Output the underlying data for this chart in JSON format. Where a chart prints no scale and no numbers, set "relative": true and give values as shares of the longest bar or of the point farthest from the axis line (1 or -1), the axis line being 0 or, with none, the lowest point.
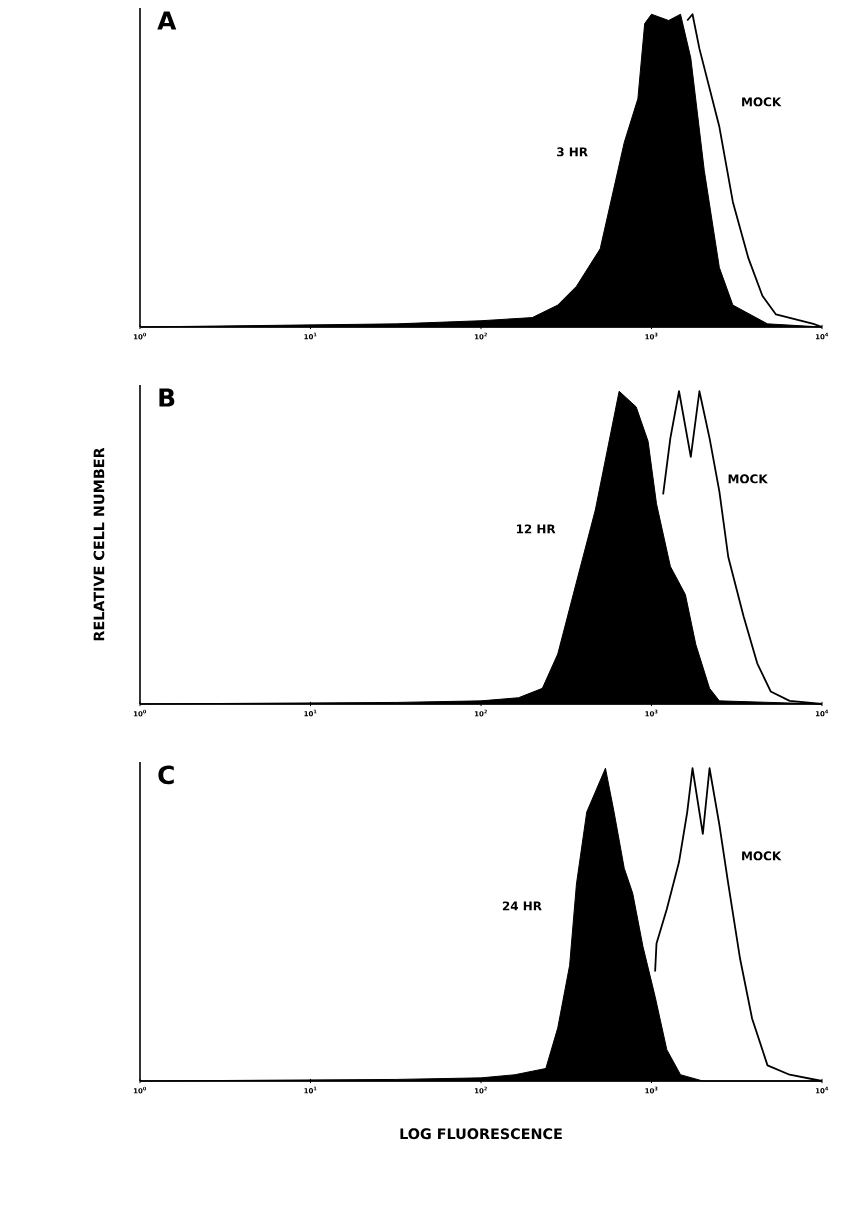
{
  "chart_data": [
    {
      "type": "area",
      "title": "A",
      "relative": true,
      "log": "x",
      "xlim": [
        1,
        10000
      ],
      "xticks": [
        {
          "value": 1,
          "label": "10$^{0}$"
        },
        {
          "value": 10,
          "label": "10$^{1}$"
        },
        {
          "value": 100,
          "label": "10$^{2}$"
        },
        {
          "value": 1000,
          "label": "10$^{3}$"
        },
        {
          "value": 10000,
          "label": "10$^{4}$"
        }
      ],
      "series": [
        {
          "name": "3 HR",
          "color": "#000000",
          "x": [
            1,
            32,
            100,
            200,
            282,
            363,
            500,
            692,
            832,
            912,
            1000,
            1260,
            1480,
            1700,
            2040,
            2500,
            3000,
            4790,
            10000
          ],
          "values": [
            0,
            0.01,
            0.02,
            0.03,
            0.07,
            0.13,
            0.25,
            0.59,
            0.73,
            0.97,
            1.0,
            0.98,
            1.0,
            0.86,
            0.5,
            0.19,
            0.07,
            0.01,
            0
          ]
        },
        {
          "name": "MOCK",
          "type": "line",
          "color": "#000000",
          "x": [
            1620,
            1740,
            1910,
            2500,
            3000,
            3700,
            4470,
            5370,
            8910,
            10000
          ],
          "values": [
            0.98,
            1.0,
            0.89,
            0.64,
            0.4,
            0.22,
            0.1,
            0.04,
            0.01,
            0
          ]
        }
      ]
    },
    {
      "type": "area",
      "title": "B",
      "ylabel": "RELATIVE CELL NUMBER",
      "relative": true,
      "log": "x",
      "xlim": [
        1,
        10000
      ],
      "xticks": [
        {
          "value": 1,
          "label": "10$^{0}$"
        },
        {
          "value": 10,
          "label": "10$^{1}$"
        },
        {
          "value": 100,
          "label": "10$^{2}$"
        },
        {
          "value": 1000,
          "label": "10$^{3}$"
        },
        {
          "value": 10000,
          "label": "10$^{4}$"
        }
      ],
      "series": [
        {
          "name": "12 HR",
          "color": "#000000",
          "x": [
            1,
            32,
            100,
            166,
            229,
            282,
            363,
            468,
            646,
            813,
            955,
            1070,
            1290,
            1580,
            1820,
            2190,
            2500,
            10000
          ],
          "values": [
            0,
            0.005,
            0.01,
            0.02,
            0.05,
            0.16,
            0.39,
            0.62,
            1.0,
            0.95,
            0.84,
            0.64,
            0.44,
            0.35,
            0.19,
            0.05,
            0.01,
            0
          ]
        },
        {
          "name": "MOCK",
          "type": "line",
          "color": "#000000",
          "x": [
            1170,
            1290,
            1450,
            1700,
            1910,
            2190,
            2500,
            2820,
            3470,
            4170,
            5000,
            6460,
            10000
          ],
          "values": [
            0.67,
            0.85,
            1.0,
            0.79,
            1.0,
            0.85,
            0.68,
            0.47,
            0.28,
            0.13,
            0.04,
            0.01,
            0
          ]
        }
      ]
    },
    {
      "type": "area",
      "title": "C",
      "xlabel": "LOG FLUORESCENCE",
      "relative": true,
      "log": "x",
      "xlim": [
        1,
        10000
      ],
      "xticks": [
        {
          "value": 1,
          "label": "10$^{0}$"
        },
        {
          "value": 10,
          "label": "10$^{1}$"
        },
        {
          "value": 100,
          "label": "10$^{2}$"
        },
        {
          "value": 1000,
          "label": "10$^{3}$"
        },
        {
          "value": 10000,
          "label": "10$^{4}$"
        }
      ],
      "series": [
        {
          "name": "24 HR",
          "color": "#000000",
          "x": [
            1,
            32,
            100,
            158,
            240,
            282,
            331,
            363,
            417,
            537,
            603,
            692,
            776,
            891,
            1050,
            1230,
            1480,
            2000,
            10000
          ],
          "values": [
            0,
            0.005,
            0.01,
            0.02,
            0.04,
            0.17,
            0.37,
            0.63,
            0.86,
            1.0,
            0.86,
            0.68,
            0.6,
            0.43,
            0.27,
            0.1,
            0.02,
            0,
            0
          ]
        },
        {
          "name": "MOCK",
          "type": "line",
          "color": "#000000",
          "x": [
            1050,
            1070,
            1230,
            1450,
            1620,
            1740,
            2000,
            2190,
            2500,
            2820,
            3310,
            3890,
            4790,
            6460,
            10000
          ],
          "values": [
            0.35,
            0.44,
            0.55,
            0.7,
            0.86,
            1.0,
            0.79,
            1.0,
            0.82,
            0.63,
            0.39,
            0.2,
            0.05,
            0.02,
            0
          ]
        }
      ]
    }
  ]
}
